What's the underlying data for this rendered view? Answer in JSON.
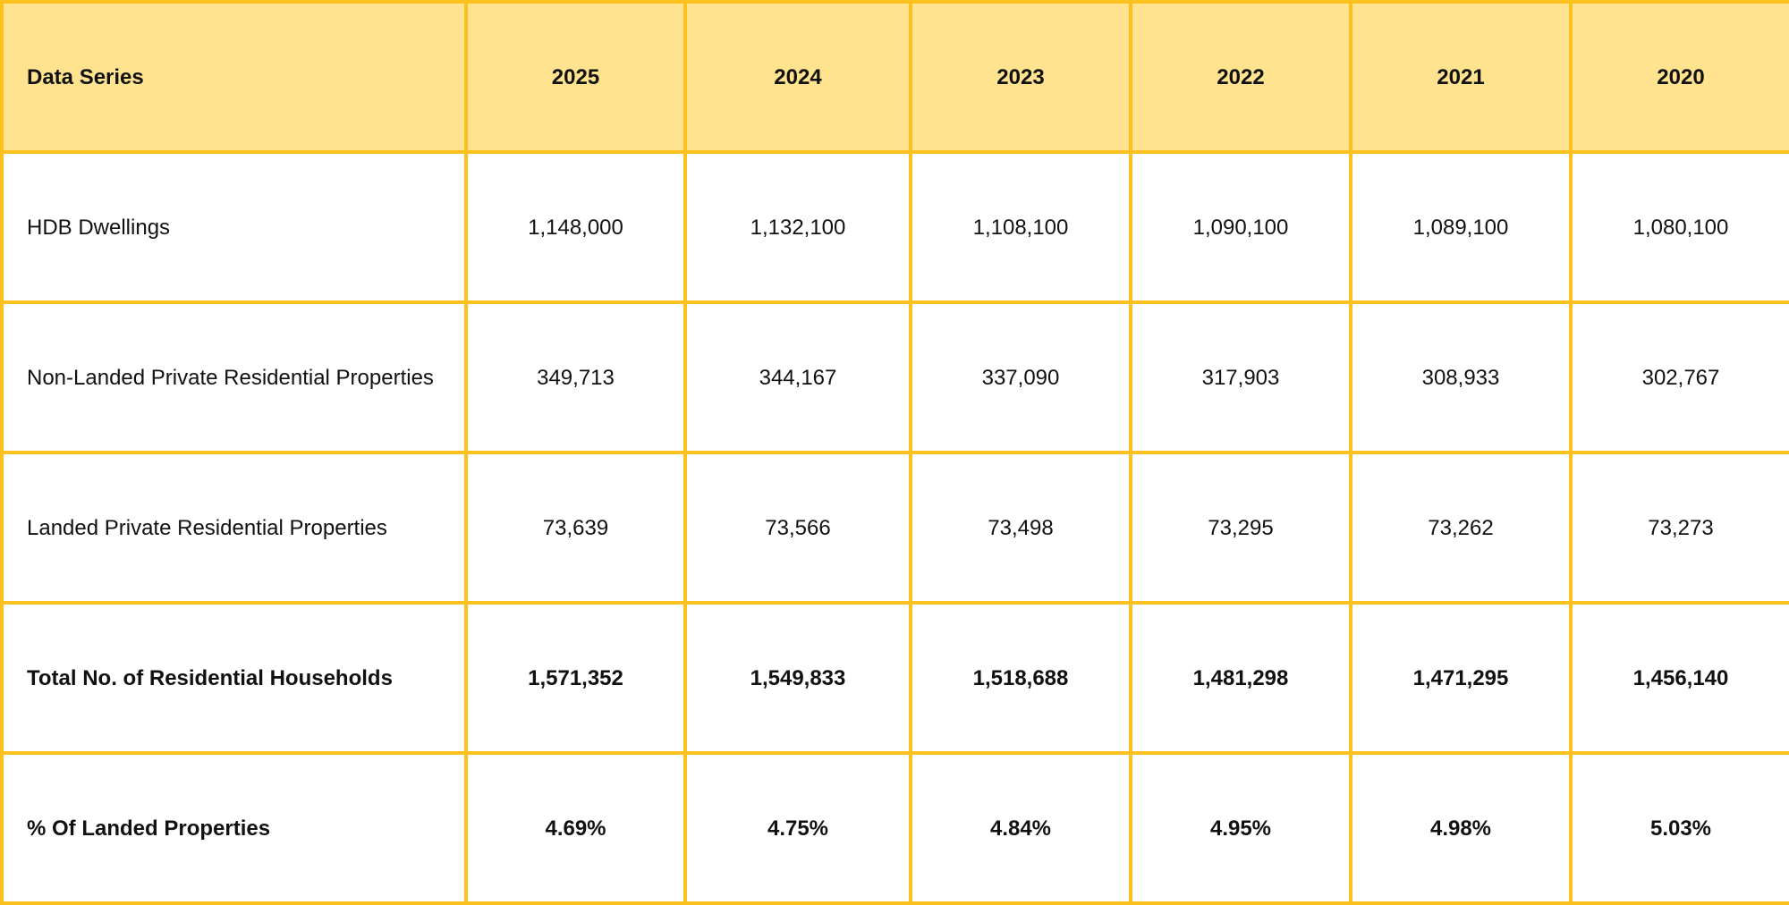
{
  "chart_data": {
    "type": "table",
    "header": {
      "label": "Data Series",
      "years": [
        "2025",
        "2024",
        "2023",
        "2022",
        "2021",
        "2020"
      ]
    },
    "rows": [
      {
        "label": "HDB Dwellings",
        "values": [
          "1,148,000",
          "1,132,100",
          "1,108,100",
          "1,090,100",
          "1,089,100",
          "1,080,100"
        ]
      },
      {
        "label": "Non-Landed Private Residential Properties",
        "values": [
          "349,713",
          "344,167",
          "337,090",
          "317,903",
          "308,933",
          "302,767"
        ]
      },
      {
        "label": "Landed Private Residential Properties",
        "values": [
          "73,639",
          "73,566",
          "73,498",
          "73,295",
          "73,262",
          "73,273"
        ]
      },
      {
        "label": "Total No. of Residential Households",
        "values": [
          "1,571,352",
          "1,549,833",
          "1,518,688",
          "1,481,298",
          "1,471,295",
          "1,456,140"
        ]
      },
      {
        "label": "% Of Landed Properties",
        "values": [
          "4.69%",
          "4.75%",
          "4.84%",
          "4.95%",
          "4.98%",
          "5.03%"
        ]
      }
    ]
  },
  "colors": {
    "border": "#FBC11E",
    "header_fill": "#FFE38F",
    "body_fill": "#FFFFFF"
  }
}
